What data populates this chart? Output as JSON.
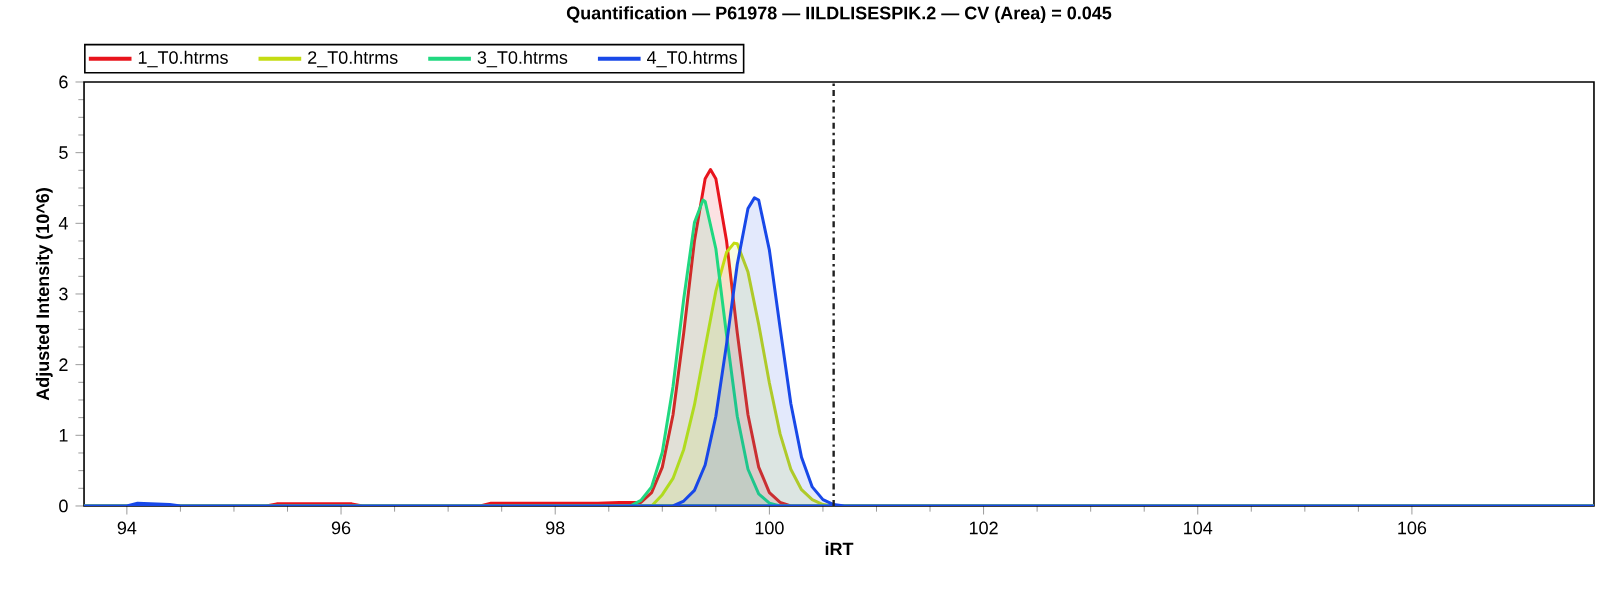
{
  "chart_data": {
    "type": "area",
    "title": "Quantification — P61978 — IILDLISESPIK.2 — CV (Area) = 0.045",
    "xlabel": "iRT",
    "ylabel": "Adjusted Intensity (10^6)",
    "xlim": [
      93.6,
      107.7
    ],
    "ylim": [
      0,
      6
    ],
    "xticks": [
      94,
      96,
      98,
      100,
      102,
      104,
      106
    ],
    "yticks": [
      0,
      1,
      2,
      3,
      4,
      5,
      6
    ],
    "legend": "top",
    "grid": false,
    "marker": "none",
    "ref_lines": [
      {
        "axis": "x",
        "value": 100.6,
        "color": "#202020",
        "line_style": "dashdot"
      }
    ],
    "series": [
      {
        "name": "1_T0.htrms",
        "color": "#e8141c",
        "x": [
          93.6,
          95.3,
          95.4,
          96.1,
          96.2,
          97.3,
          97.4,
          98.4,
          98.6,
          98.8,
          98.9,
          99.0,
          99.1,
          99.2,
          99.3,
          99.4,
          99.45,
          99.5,
          99.6,
          99.7,
          99.8,
          99.9,
          100.0,
          100.1,
          100.2,
          107.7
        ],
        "values": [
          0,
          0,
          0.03,
          0.03,
          0,
          0,
          0.04,
          0.04,
          0.05,
          0.05,
          0.19,
          0.55,
          1.29,
          2.45,
          3.75,
          4.63,
          4.76,
          4.63,
          3.75,
          2.45,
          1.29,
          0.55,
          0.19,
          0.05,
          0,
          0
        ]
      },
      {
        "name": "2_T0.htrms",
        "color": "#c4dc12",
        "x": [
          93.6,
          98.9,
          99.0,
          99.1,
          99.2,
          99.3,
          99.4,
          99.5,
          99.6,
          99.67,
          99.7,
          99.8,
          99.9,
          100.0,
          100.1,
          100.2,
          100.3,
          100.4,
          100.5,
          100.6,
          107.7
        ],
        "values": [
          0,
          0,
          0.16,
          0.39,
          0.8,
          1.43,
          2.24,
          3.04,
          3.59,
          3.72,
          3.71,
          3.31,
          2.57,
          1.74,
          1.02,
          0.52,
          0.23,
          0.09,
          0.02,
          0,
          0
        ]
      },
      {
        "name": "3_T0.htrms",
        "color": "#20d880",
        "x": [
          93.6,
          98.7,
          98.8,
          98.9,
          99.0,
          99.1,
          99.2,
          99.3,
          99.38,
          99.4,
          99.5,
          99.6,
          99.7,
          99.8,
          99.9,
          100.0,
          100.1,
          107.7
        ],
        "values": [
          0,
          0,
          0.08,
          0.27,
          0.76,
          1.69,
          2.93,
          4.01,
          4.33,
          4.31,
          3.64,
          2.42,
          1.27,
          0.52,
          0.17,
          0.04,
          0,
          0
        ]
      },
      {
        "name": "4_T0.htrms",
        "color": "#1848e8",
        "x": [
          93.6,
          94.0,
          94.1,
          94.4,
          94.5,
          99.1,
          99.2,
          99.3,
          99.4,
          99.5,
          99.6,
          99.7,
          99.8,
          99.86,
          99.9,
          100.0,
          100.1,
          100.2,
          100.3,
          100.4,
          100.5,
          100.6,
          100.7,
          107.7
        ],
        "values": [
          0,
          0,
          0.04,
          0.02,
          0,
          0,
          0.07,
          0.22,
          0.58,
          1.27,
          2.29,
          3.42,
          4.21,
          4.36,
          4.33,
          3.62,
          2.52,
          1.45,
          0.69,
          0.27,
          0.09,
          0.02,
          0,
          0
        ]
      }
    ]
  }
}
